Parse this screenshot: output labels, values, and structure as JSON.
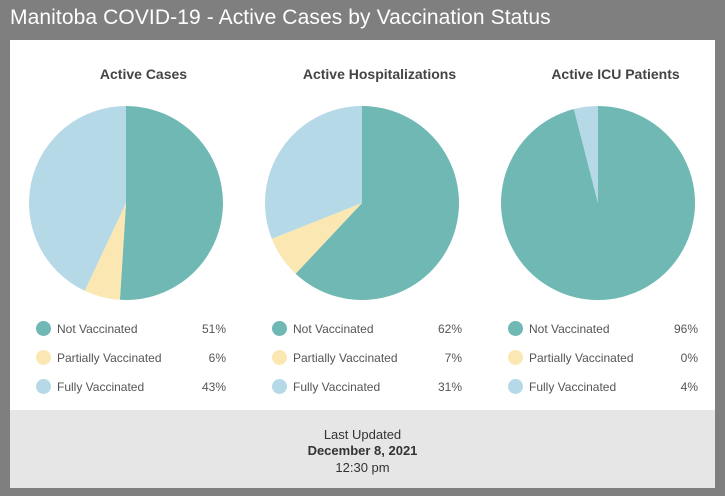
{
  "title": "Manitoba COVID-19 - Active Cases by Vaccination Status",
  "colors": {
    "not_vaccinated": "#6fb8b4",
    "partially_vaccinated": "#fbe7b1",
    "fully_vaccinated": "#b6d9e7"
  },
  "chart_data": [
    {
      "type": "pie",
      "title": "Active Cases",
      "categories": [
        "Not Vaccinated",
        "Partially Vaccinated",
        "Fully Vaccinated"
      ],
      "values": [
        51,
        6,
        43
      ],
      "value_labels": [
        "51%",
        "6%",
        "43%"
      ]
    },
    {
      "type": "pie",
      "title": "Active Hospitalizations",
      "categories": [
        "Not Vaccinated",
        "Partially Vaccinated",
        "Fully Vaccinated"
      ],
      "values": [
        62,
        7,
        31
      ],
      "value_labels": [
        "62%",
        "7%",
        "31%"
      ]
    },
    {
      "type": "pie",
      "title": "Active ICU Patients",
      "categories": [
        "Not Vaccinated",
        "Partially Vaccinated",
        "Fully Vaccinated"
      ],
      "values": [
        96,
        0,
        4
      ],
      "value_labels": [
        "96%",
        "0%",
        "4%"
      ]
    }
  ],
  "footer": {
    "line1": "Last Updated",
    "line2": "December 8, 2021",
    "line3": "12:30 pm"
  }
}
